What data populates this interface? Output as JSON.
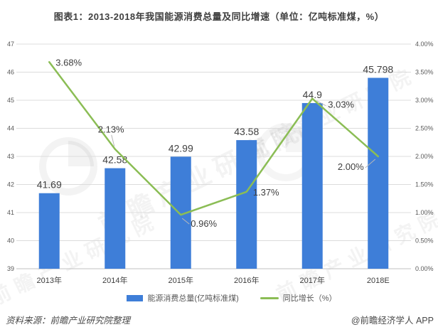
{
  "header": {
    "title": "图表1：2013-2018年我国能源消费总量及同比增速（单位：亿吨标准煤，%）"
  },
  "chart_data": {
    "type": "combo",
    "title": "图表1：2013-2018年我国能源消费总量及同比增速（单位：亿吨标准煤，%）",
    "categories": [
      "2013年",
      "2014年",
      "2015年",
      "2016年",
      "2017年",
      "2018E"
    ],
    "series": [
      {
        "name": "能源消费总量(亿吨标准煤)",
        "type": "bar",
        "axis": "left",
        "values": [
          41.69,
          42.58,
          42.99,
          43.58,
          44.9,
          45.798
        ],
        "labels": [
          "41.69",
          "42.58",
          "42.99",
          "43.58",
          "44.9",
          "45.798"
        ],
        "color": "#3E7ED8"
      },
      {
        "name": "同比增长（%）",
        "type": "line",
        "axis": "right",
        "values": [
          3.68,
          2.13,
          0.96,
          1.37,
          3.03,
          2.0
        ],
        "labels": [
          "3.68%",
          "2.13%",
          "0.96%",
          "1.37%",
          "3.03%",
          "2.00%"
        ],
        "label_placements": [
          "right",
          "above-leader",
          "below-right-leader",
          "right",
          "right-leader",
          "left-leader"
        ],
        "color": "#8BBD55"
      }
    ],
    "left_axis": {
      "min": 39,
      "max": 47,
      "step": 1,
      "tick_labels": [
        "47",
        "46",
        "45",
        "44",
        "43",
        "42",
        "41",
        "40",
        "39"
      ]
    },
    "right_axis": {
      "min": 0,
      "max": 4,
      "step": 0.5,
      "tick_labels": [
        "4.00%",
        "3.50%",
        "3.00%",
        "2.50%",
        "2.00%",
        "1.50%",
        "1.00%",
        "0.50%",
        "0.00%"
      ]
    },
    "grid": true,
    "legend_position": "bottom",
    "text_color": "#404040",
    "tick_color": "#595959",
    "grid_color": "#dcdcdc",
    "axis_line_color": "#c2c2c2",
    "leader_color": "#b9b9b9"
  },
  "watermark": {
    "text": "前瞻产业研究院"
  },
  "footer": {
    "source": "资料来源：前瞻产业研究院整理",
    "credit": "@前瞻经济学人 APP"
  }
}
